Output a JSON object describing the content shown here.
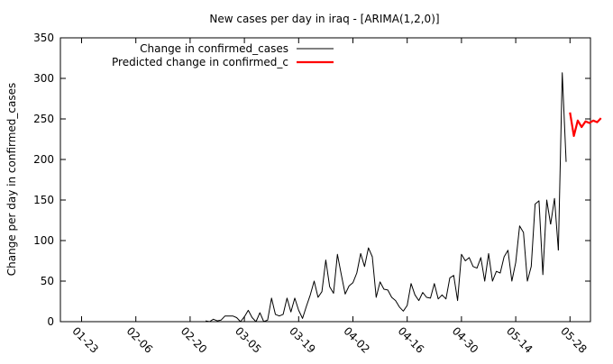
{
  "chart_data": {
    "type": "line",
    "title": "New cases per day in iraq -  [ARIMA(1,2,0)]",
    "xlabel": "",
    "ylabel": "Change per day in confirmed_cases",
    "ylim": [
      0,
      350
    ],
    "yticks": [
      0,
      50,
      100,
      150,
      200,
      250,
      300,
      350
    ],
    "x_start": "2020-01-23",
    "x_end": "2020-06-01",
    "x_ticks": [
      "01-23",
      "02-06",
      "02-20",
      "03-05",
      "03-19",
      "04-02",
      "04-16",
      "04-30",
      "05-14",
      "05-28"
    ],
    "grid": false,
    "legend": "top-left",
    "series": [
      {
        "name": "Change in confirmed_cases",
        "color": "#000000",
        "x": [
          "2020-02-24",
          "2020-02-25",
          "2020-02-26",
          "2020-02-27",
          "2020-02-28",
          "2020-02-29",
          "2020-03-01",
          "2020-03-02",
          "2020-03-03",
          "2020-03-04",
          "2020-03-05",
          "2020-03-06",
          "2020-03-07",
          "2020-03-08",
          "2020-03-09",
          "2020-03-10",
          "2020-03-11",
          "2020-03-12",
          "2020-03-13",
          "2020-03-14",
          "2020-03-15",
          "2020-03-16",
          "2020-03-17",
          "2020-03-18",
          "2020-03-19",
          "2020-03-20",
          "2020-03-21",
          "2020-03-22",
          "2020-03-23",
          "2020-03-24",
          "2020-03-25",
          "2020-03-26",
          "2020-03-27",
          "2020-03-28",
          "2020-03-29",
          "2020-03-30",
          "2020-03-31",
          "2020-04-01",
          "2020-04-02",
          "2020-04-03",
          "2020-04-04",
          "2020-04-05",
          "2020-04-06",
          "2020-04-07",
          "2020-04-08",
          "2020-04-09",
          "2020-04-10",
          "2020-04-11",
          "2020-04-12",
          "2020-04-13",
          "2020-04-14",
          "2020-04-15",
          "2020-04-16",
          "2020-04-17",
          "2020-04-18",
          "2020-04-19",
          "2020-04-20",
          "2020-04-21",
          "2020-04-22",
          "2020-04-23",
          "2020-04-24",
          "2020-04-25",
          "2020-04-26",
          "2020-04-27",
          "2020-04-28",
          "2020-04-29",
          "2020-04-30",
          "2020-05-01",
          "2020-05-02",
          "2020-05-03",
          "2020-05-04",
          "2020-05-05",
          "2020-05-06",
          "2020-05-07",
          "2020-05-08",
          "2020-05-09",
          "2020-05-10",
          "2020-05-11",
          "2020-05-12",
          "2020-05-13",
          "2020-05-14",
          "2020-05-15",
          "2020-05-16",
          "2020-05-17",
          "2020-05-18",
          "2020-05-19",
          "2020-05-20",
          "2020-05-21",
          "2020-05-22",
          "2020-05-23"
        ],
        "values": [
          1,
          0,
          3,
          1,
          2,
          7,
          7,
          7,
          5,
          0,
          6,
          14,
          5,
          0,
          11,
          0,
          2,
          29,
          9,
          7,
          9,
          29,
          12,
          29,
          14,
          4,
          19,
          33,
          50,
          30,
          37,
          76,
          43,
          35,
          83,
          58,
          34,
          44,
          48,
          60,
          84,
          68,
          91,
          80,
          30,
          49,
          40,
          39,
          30,
          26,
          18,
          13,
          20,
          47,
          33,
          26,
          36,
          30,
          29,
          47,
          28,
          33,
          28,
          54,
          57,
          26,
          83,
          75,
          79,
          68,
          66,
          79,
          50,
          84,
          50,
          62,
          60,
          80,
          88,
          50,
          73,
          118,
          110,
          50,
          68,
          145,
          149,
          58,
          150,
          120
        ]
      },
      {
        "name": "",
        "color": "#000000",
        "x": [
          "2020-05-23",
          "2020-05-24",
          "2020-05-25"
        ],
        "values": [
          120,
          152,
          88
        ]
      },
      {
        "name": "",
        "color": "#000000",
        "x": [
          "2020-05-25",
          "2020-05-26",
          "2020-05-27"
        ],
        "values": [
          88,
          307,
          197
        ]
      },
      {
        "name": "Predicted change in confirmed_c",
        "color": "#ff0000",
        "x": [
          "2020-05-28",
          "2020-05-29",
          "2020-05-30",
          "2020-05-31",
          "2020-06-01",
          "2020-06-02",
          "2020-06-03",
          "2020-06-04",
          "2020-06-05"
        ],
        "values": [
          258,
          229,
          248,
          240,
          247,
          245,
          248,
          246,
          251
        ]
      }
    ]
  }
}
